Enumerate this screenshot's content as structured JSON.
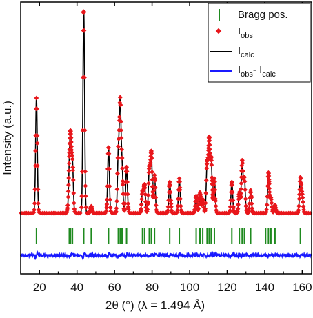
{
  "chart_data": {
    "type": "line",
    "title": "",
    "xlabel": "2θ (°) (λ = 1.494 Å)",
    "ylabel": "Intensity (a.u.)",
    "xlim": [
      10,
      165
    ],
    "xticks": [
      20,
      40,
      60,
      80,
      100,
      120,
      140,
      160
    ],
    "y_tick_labels_shown": false,
    "legend_position": "top-right",
    "legend": [
      {
        "key": "bragg",
        "label": "Bragg pos.",
        "marker": "vertical-tick",
        "color": "#1f8a1f"
      },
      {
        "key": "obs",
        "label": "I",
        "sub": "obs",
        "marker": "diamond",
        "color": "#e8161b"
      },
      {
        "key": "calc",
        "label": "I",
        "sub": "calc",
        "marker": "line",
        "color": "#000000"
      },
      {
        "key": "diff",
        "label": "I",
        "sub": "obs",
        "label2": "- I",
        "sub2": "calc",
        "marker": "line",
        "color": "#1a1aff"
      }
    ],
    "baseline_intensity": 1.8,
    "peaks": [
      {
        "x": 18.4,
        "height": 100,
        "width": 0.45
      },
      {
        "x": 35.9,
        "height": 32,
        "width": 0.45
      },
      {
        "x": 36.6,
        "height": 58,
        "width": 0.45
      },
      {
        "x": 37.6,
        "height": 42,
        "width": 0.45
      },
      {
        "x": 43.6,
        "height": 175,
        "width": 0.45
      },
      {
        "x": 47.6,
        "height": 6,
        "width": 0.45
      },
      {
        "x": 56.8,
        "height": 57,
        "width": 0.45
      },
      {
        "x": 62.0,
        "height": 50,
        "width": 0.45
      },
      {
        "x": 63.0,
        "height": 93,
        "width": 0.45
      },
      {
        "x": 64.0,
        "height": 40,
        "width": 0.45
      },
      {
        "x": 66.4,
        "height": 40,
        "width": 0.45
      },
      {
        "x": 74.9,
        "height": 18,
        "width": 0.45
      },
      {
        "x": 76.0,
        "height": 24,
        "width": 0.45
      },
      {
        "x": 78.5,
        "height": 38,
        "width": 0.45
      },
      {
        "x": 79.6,
        "height": 52,
        "width": 0.45
      },
      {
        "x": 81.3,
        "height": 33,
        "width": 0.45
      },
      {
        "x": 89.4,
        "height": 27,
        "width": 0.45
      },
      {
        "x": 94.5,
        "height": 30,
        "width": 0.45
      },
      {
        "x": 103.5,
        "height": 15,
        "width": 0.45
      },
      {
        "x": 105.5,
        "height": 18,
        "width": 0.45
      },
      {
        "x": 107.0,
        "height": 12,
        "width": 0.45
      },
      {
        "x": 109.3,
        "height": 42,
        "width": 0.45
      },
      {
        "x": 110.4,
        "height": 62,
        "width": 0.45
      },
      {
        "x": 111.5,
        "height": 45,
        "width": 0.45
      },
      {
        "x": 113.2,
        "height": 30,
        "width": 0.45
      },
      {
        "x": 122.5,
        "height": 27,
        "width": 0.45
      },
      {
        "x": 126.5,
        "height": 18,
        "width": 0.45
      },
      {
        "x": 128.0,
        "height": 45,
        "width": 0.45
      },
      {
        "x": 129.2,
        "height": 30,
        "width": 0.45
      },
      {
        "x": 132.5,
        "height": 20,
        "width": 0.45
      },
      {
        "x": 142.0,
        "height": 35,
        "width": 0.45
      },
      {
        "x": 143.3,
        "height": 13,
        "width": 0.45
      },
      {
        "x": 145.5,
        "height": 7,
        "width": 0.45
      },
      {
        "x": 159.0,
        "height": 30,
        "width": 0.45
      },
      {
        "x": 160.0,
        "height": 14,
        "width": 0.45
      }
    ],
    "bragg_positions": [
      18.4,
      35.9,
      36.6,
      37.6,
      43.6,
      47.6,
      56.8,
      62.0,
      63.0,
      64.0,
      66.4,
      74.9,
      76.0,
      78.5,
      79.6,
      81.3,
      89.4,
      94.5,
      103.5,
      105.5,
      107.0,
      109.3,
      110.4,
      111.5,
      113.2,
      122.5,
      126.5,
      128.0,
      129.2,
      132.5,
      140.5,
      142.0,
      143.3,
      145.5,
      159.0
    ]
  }
}
